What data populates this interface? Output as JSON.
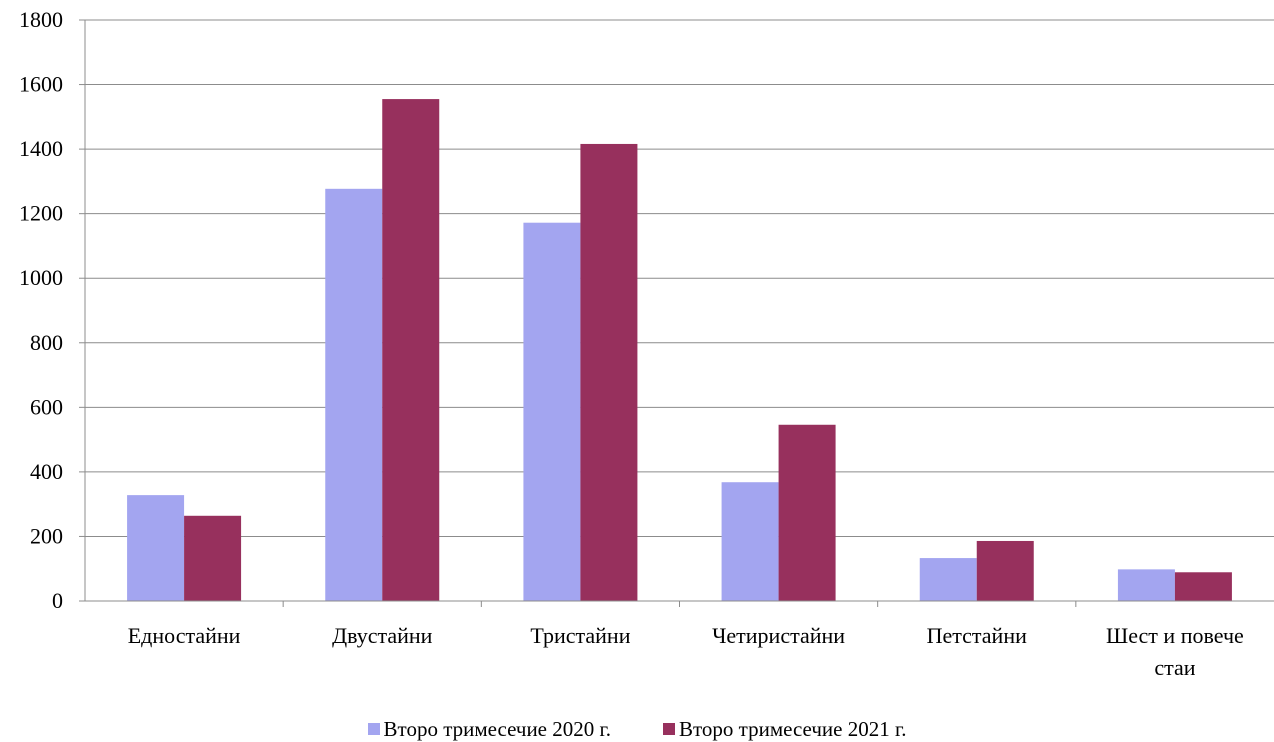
{
  "chart_data": {
    "type": "bar",
    "categories": [
      "Едностайни",
      "Двустайни",
      "Тристайни",
      "Четиристайни",
      "Петстайни",
      "Шест и повече стаи"
    ],
    "series": [
      {
        "name": "Второ тримесечие 2020 г.",
        "color": "#a3a5f0",
        "values": [
          328,
          1277,
          1172,
          368,
          133,
          98
        ]
      },
      {
        "name": "Второ тримесечие 2021 г.",
        "color": "#97305d",
        "values": [
          264,
          1555,
          1416,
          546,
          186,
          89
        ]
      }
    ],
    "ylim": [
      0,
      1800
    ],
    "yticks": [
      "0",
      "200",
      "400",
      "600",
      "800",
      "1000",
      "1200",
      "1400",
      "1600",
      "1800"
    ],
    "grid": true,
    "legend_position": "bottom"
  }
}
